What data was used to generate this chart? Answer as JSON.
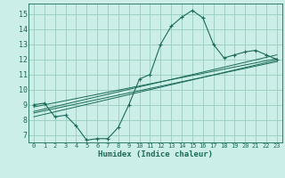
{
  "xlabel": "Humidex (Indice chaleur)",
  "xlim": [
    -0.5,
    23.5
  ],
  "ylim": [
    6.5,
    15.7
  ],
  "xticks": [
    0,
    1,
    2,
    3,
    4,
    5,
    6,
    7,
    8,
    9,
    10,
    11,
    12,
    13,
    14,
    15,
    16,
    17,
    18,
    19,
    20,
    21,
    22,
    23
  ],
  "yticks": [
    7,
    8,
    9,
    10,
    11,
    12,
    13,
    14,
    15
  ],
  "bg_color": "#cceee8",
  "grid_color": "#99ccbb",
  "line_color": "#1a6b5a",
  "main_x": [
    0,
    1,
    2,
    3,
    4,
    5,
    6,
    7,
    8,
    9,
    10,
    11,
    12,
    13,
    14,
    15,
    16,
    17,
    18,
    19,
    20,
    21,
    22,
    23
  ],
  "main_y": [
    9.0,
    9.1,
    8.2,
    8.3,
    7.6,
    6.65,
    6.75,
    6.75,
    7.5,
    9.0,
    10.7,
    11.0,
    13.0,
    14.2,
    14.8,
    15.25,
    14.75,
    13.0,
    12.1,
    12.3,
    12.5,
    12.6,
    12.3,
    12.0
  ],
  "reg_lines": [
    {
      "x": [
        0,
        23
      ],
      "y": [
        8.85,
        12.05
      ]
    },
    {
      "x": [
        0,
        23
      ],
      "y": [
        8.55,
        12.3
      ]
    },
    {
      "x": [
        0,
        23
      ],
      "y": [
        8.45,
        11.85
      ]
    },
    {
      "x": [
        0,
        23
      ],
      "y": [
        8.2,
        11.95
      ]
    }
  ],
  "xtick_fontsize": 5.0,
  "ytick_fontsize": 6.0,
  "xlabel_fontsize": 6.5
}
